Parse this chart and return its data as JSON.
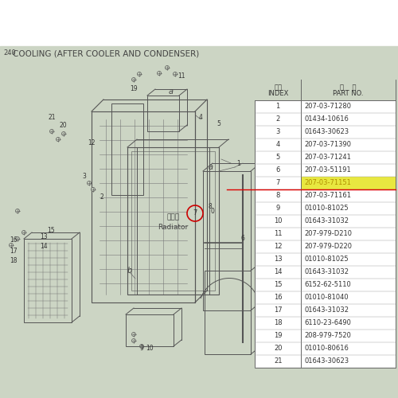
{
  "title": "COOLING (AFTER COOLER AND CONDENSER)",
  "page_label": "240",
  "bg_color": "#ccd5c4",
  "white_color": "#ffffff",
  "table_bg": "#ccd5c4",
  "rows": [
    [
      "1",
      "207-03-71280"
    ],
    [
      "2",
      "01434-10616"
    ],
    [
      "3",
      "01643-30623"
    ],
    [
      "4",
      "207-03-71390"
    ],
    [
      "5",
      "207-03-71241"
    ],
    [
      "6",
      "207-03-51191"
    ],
    [
      "7",
      "207-03-71151"
    ],
    [
      "8",
      "207-03-71161"
    ],
    [
      "9",
      "01010-81025"
    ],
    [
      "10",
      "01643-31032"
    ],
    [
      "11",
      "207-979-D210"
    ],
    [
      "12",
      "207-979-D220"
    ],
    [
      "13",
      "01010-81025"
    ],
    [
      "14",
      "01643-31032"
    ],
    [
      "15",
      "6152-62-5110"
    ],
    [
      "16",
      "01010-81040"
    ],
    [
      "17",
      "01643-31032"
    ],
    [
      "18",
      "6110-23-6490"
    ],
    [
      "19",
      "208-979-7520"
    ],
    [
      "20",
      "01010-80616"
    ],
    [
      "21",
      "01643-30623"
    ]
  ],
  "highlight_row": 6,
  "highlight_color": "#e8e840",
  "highlight_text_color": "#b09000",
  "red_line_after_row": 6,
  "red_line_color": "#dd0000",
  "table_border_color": "#666666",
  "table_text_color": "#333333",
  "table_line_color": "#999999",
  "line_color": "#555555",
  "diagram_label_cn": "散热器",
  "diagram_label_en": "Radiator"
}
